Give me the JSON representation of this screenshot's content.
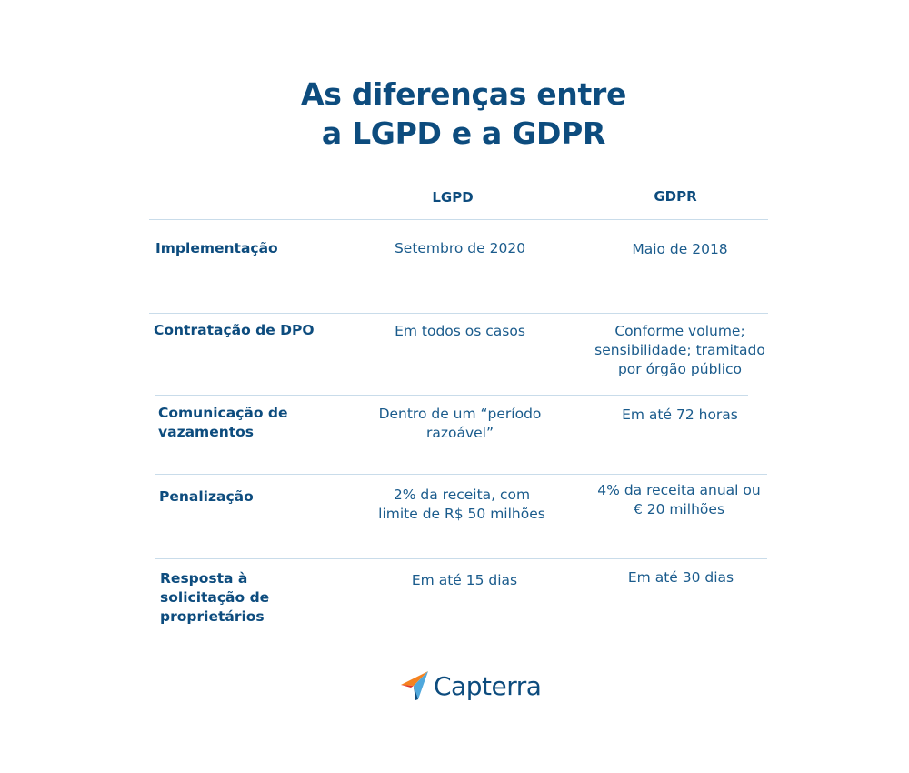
{
  "title": {
    "line1": "As diferenças entre",
    "line2": "a LGPD e a GDPR"
  },
  "table": {
    "columns": [
      "LGPD",
      "GDPR"
    ],
    "rows": [
      {
        "label": "Implementação",
        "lgpd": "Setembro de 2020",
        "gdpr": "Maio de 2018"
      },
      {
        "label": "Contratação de DPO",
        "lgpd": "Em todos os casos",
        "gdpr": "Conforme volume;\nsensibilidade; tramitado\npor órgão público"
      },
      {
        "label": "Comunicação de\nvazamentos",
        "lgpd": "Dentro de um “período\nrazoável”",
        "gdpr": "Em até 72 horas"
      },
      {
        "label": "Penalização",
        "lgpd": "2% da receita, com\nlimite de R$ 50 milhões",
        "gdpr": "4% da receita anual ou\n€ 20 milhões"
      },
      {
        "label": "Resposta à\nsolicitação de\nproprietários",
        "lgpd": "Em até 15 dias",
        "gdpr": "Em até 30 dias"
      }
    ]
  },
  "logo": {
    "text": "Capterra",
    "icon": "capterra-arrow-icon",
    "colors": {
      "blue": "#0d4c7e",
      "orange": "#f58220",
      "sky": "#50a8dc",
      "red": "#e0362b"
    }
  },
  "colors": {
    "title": "#0d4c7e",
    "text": "#1a5b8c",
    "rule": "#c9dcea"
  }
}
